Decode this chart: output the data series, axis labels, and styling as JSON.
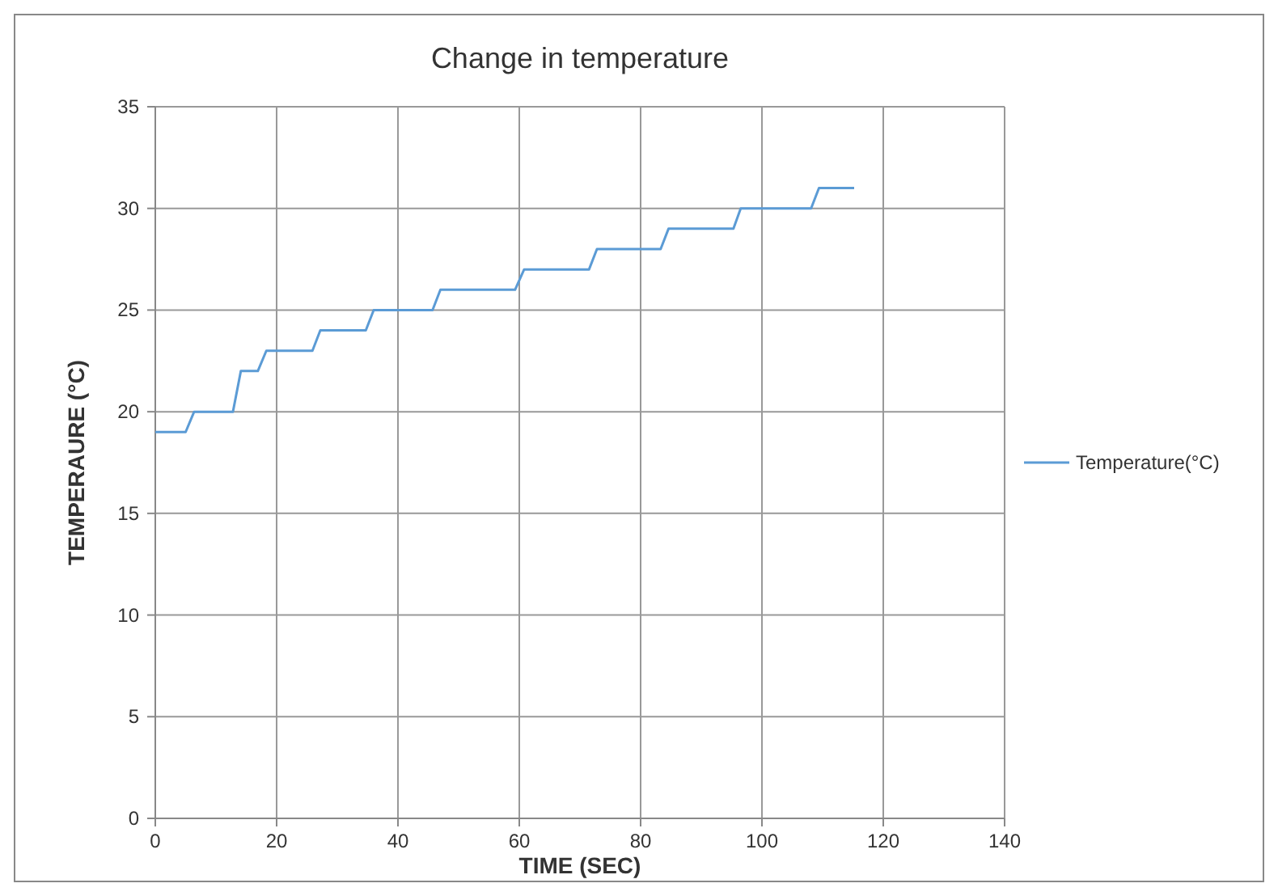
{
  "chart_data": {
    "type": "line",
    "title": "Change in temperature",
    "xlabel": "TIME (SEC)",
    "ylabel": "TEMPERAURE (°C)",
    "series": [
      {
        "name": "Temperature(°C)",
        "color": "#5b9bd5",
        "x": [
          0,
          5,
          6.4,
          12.8,
          14.1,
          16.9,
          18.3,
          25.9,
          27.2,
          34.7,
          36,
          45.7,
          47,
          59.3,
          60.8,
          71.5,
          72.8,
          83.3,
          84.6,
          95.3,
          96.5,
          108.1,
          109.4,
          115.2
        ],
        "values": [
          19,
          19,
          20,
          20,
          22,
          22,
          23,
          23,
          24,
          24,
          25,
          25,
          26,
          26,
          27,
          27,
          28,
          28,
          29,
          29,
          30,
          30,
          31,
          31
        ]
      }
    ],
    "xlim": [
      0,
      140
    ],
    "xticks": [
      0,
      20,
      40,
      60,
      80,
      100,
      120,
      140
    ],
    "ylim": [
      0,
      35
    ],
    "yticks": [
      0,
      5,
      10,
      15,
      20,
      25,
      30,
      35
    ],
    "grid": true,
    "legend": "right",
    "marker": "none",
    "line_style": "solid"
  }
}
